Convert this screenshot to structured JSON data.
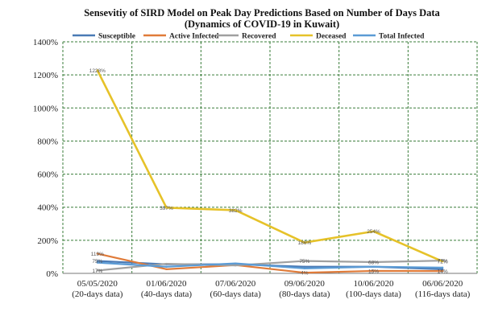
{
  "chart_data": {
    "type": "line",
    "title": "Sensevitiy of SIRD Model on Peak Day Predictions Based on Number of Days Data",
    "subtitle": "(Dynamics of COVID-19 in Kuwait)",
    "xlabel": "",
    "ylabel": "",
    "categories": [
      [
        "05/05/2020",
        "(20-days data)"
      ],
      [
        "01/06/2020",
        "(40-days data)"
      ],
      [
        "07/06/2020",
        "(60-days data)"
      ],
      [
        "09/06/2020",
        "(80-days data)"
      ],
      [
        "10/06/2020",
        "(100-days data)"
      ],
      [
        "06/06/2020",
        "(116-days data)"
      ]
    ],
    "ylim": [
      0,
      1400
    ],
    "yticks": [
      "0%",
      "200%",
      "400%",
      "600%",
      "800%",
      "1000%",
      "1200%",
      "1400%"
    ],
    "grid": "vertical dashed",
    "legend_position": "top",
    "series": [
      {
        "name": "Susceptible",
        "color": "#4a7ab5",
        "values": [
          75,
          55,
          55,
          40,
          40,
          25
        ],
        "labels": [
          "75%",
          "",
          "",
          "",
          "",
          ""
        ]
      },
      {
        "name": "Active Infected",
        "color": "#e07b39",
        "values": [
          119,
          25,
          50,
          4,
          15,
          14
        ],
        "labels": [
          "119%",
          "",
          "",
          "4%",
          "15%",
          "14%"
        ]
      },
      {
        "name": "Recovered",
        "color": "#a0a0a0",
        "values": [
          17,
          58,
          48,
          75,
          68,
          77
        ],
        "labels": [
          "17%",
          "",
          "",
          "75%",
          "68%",
          "77%"
        ]
      },
      {
        "name": "Deceased",
        "color": "#e6c229",
        "values": [
          1228,
          397,
          382,
          186,
          254,
          72
        ],
        "labels": [
          "1228%",
          "397%",
          "382%",
          "186%",
          "254%",
          "72%"
        ]
      },
      {
        "name": "Total Infected",
        "color": "#5b9bd5",
        "values": [
          65,
          40,
          60,
          30,
          40,
          35
        ],
        "labels": [
          "",
          "",
          "",
          "",
          "",
          ""
        ]
      }
    ]
  }
}
